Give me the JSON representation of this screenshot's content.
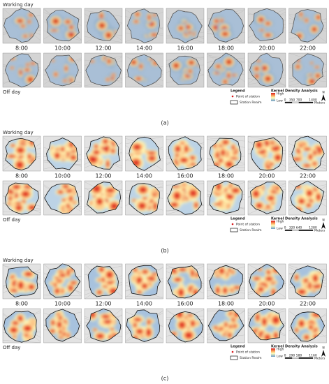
{
  "panels": [
    {
      "label": "(a)",
      "working": "Working day",
      "off": "Off day",
      "times": [
        "8:00",
        "10:00",
        "12:00",
        "14:00",
        "16:00",
        "18:00",
        "20:00",
        "22:00"
      ],
      "legend": {
        "title": "Legend",
        "point": "Point of station",
        "realm": "Station Realm",
        "kda": "Kernel Density Analysis",
        "high": "High",
        "low": "Low",
        "north": "N",
        "scale": [
          "0",
          "350",
          "700",
          "1400"
        ],
        "unit": "Meters"
      }
    },
    {
      "label": "(b)",
      "working": "Working day",
      "off": "Off day",
      "times": [
        "8:00",
        "10:00",
        "12:00",
        "14:00",
        "16:00",
        "18:00",
        "20:00",
        "22:00"
      ],
      "legend": {
        "title": "Legend",
        "point": "Point of station",
        "realm": "Station Realm",
        "kda": "Kernel Density Analysis",
        "high": "High",
        "low": "Low",
        "north": "N",
        "scale": [
          "0",
          "320",
          "640",
          "1280"
        ],
        "unit": "Meters"
      }
    },
    {
      "label": "(c)",
      "working": "Working day",
      "off": "Off day",
      "times": [
        "8:00",
        "10:00",
        "12:00",
        "14:00",
        "16:00",
        "18:00",
        "20:00",
        "22:00"
      ],
      "legend": {
        "title": "Legend",
        "point": "Point of station",
        "realm": "Station Realm",
        "kda": "Kernel Density Analysis",
        "high": "High",
        "low": "Low",
        "north": "N",
        "scale": [
          "0",
          "290",
          "580",
          "1160"
        ],
        "unit": "Meters"
      }
    }
  ]
}
